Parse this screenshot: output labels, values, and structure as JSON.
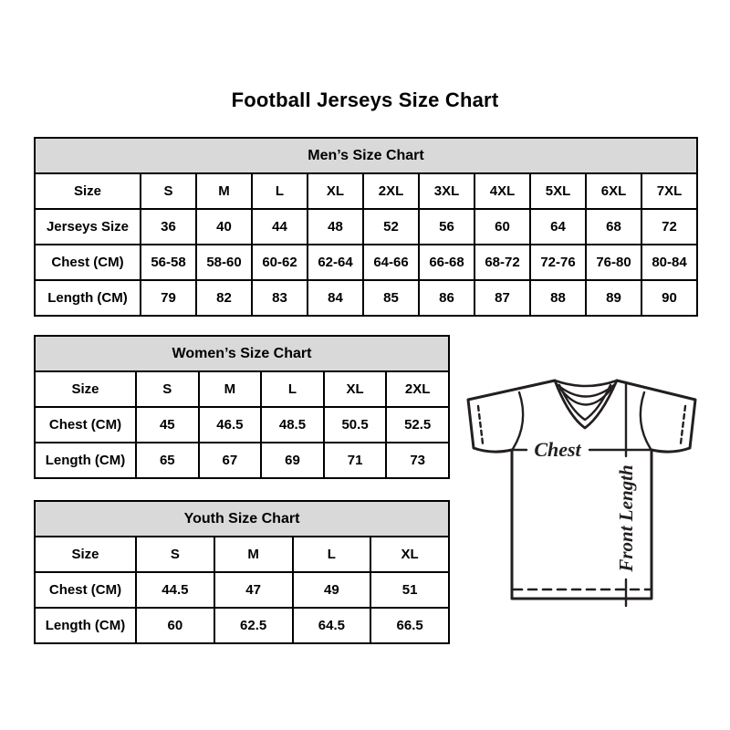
{
  "page": {
    "title": "Football Jerseys Size Chart"
  },
  "tables": {
    "mens": {
      "title": "Men’s Size Chart",
      "rows": [
        [
          "Size",
          "S",
          "M",
          "L",
          "XL",
          "2XL",
          "3XL",
          "4XL",
          "5XL",
          "6XL",
          "7XL"
        ],
        [
          "Jerseys Size",
          "36",
          "40",
          "44",
          "48",
          "52",
          "56",
          "60",
          "64",
          "68",
          "72"
        ],
        [
          "Chest (CM)",
          "56-58",
          "58-60",
          "60-62",
          "62-64",
          "64-66",
          "66-68",
          "68-72",
          "72-76",
          "76-80",
          "80-84"
        ],
        [
          "Length (CM)",
          "79",
          "82",
          "83",
          "84",
          "85",
          "86",
          "87",
          "88",
          "89",
          "90"
        ]
      ]
    },
    "womens": {
      "title": "Women’s Size Chart",
      "rows": [
        [
          "Size",
          "S",
          "M",
          "L",
          "XL",
          "2XL"
        ],
        [
          "Chest (CM)",
          "45",
          "46.5",
          "48.5",
          "50.5",
          "52.5"
        ],
        [
          "Length (CM)",
          "65",
          "67",
          "69",
          "71",
          "73"
        ]
      ]
    },
    "youth": {
      "title": "Youth Size Chart",
      "rows": [
        [
          "Size",
          "S",
          "M",
          "L",
          "XL"
        ],
        [
          "Chest (CM)",
          "44.5",
          "47",
          "49",
          "51"
        ],
        [
          "Length (CM)",
          "60",
          "62.5",
          "64.5",
          "66.5"
        ]
      ]
    }
  },
  "diagram": {
    "chest_label": "Chest",
    "front_length_label": "Front Length"
  },
  "colors": {
    "table_header_bg": "#d9d9d9",
    "table_border": "#000000",
    "text": "#000000",
    "diagram_stroke": "#231f20"
  }
}
